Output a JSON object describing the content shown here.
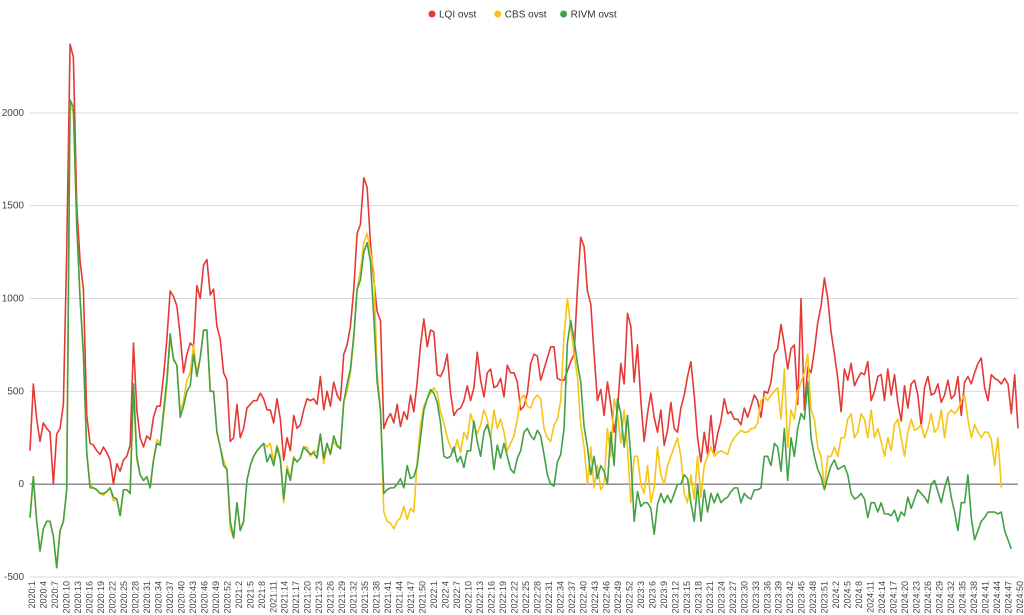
{
  "chart_data": {
    "type": "line",
    "title": "",
    "xlabel": "",
    "ylabel": "",
    "ylim": [
      -500,
      2500
    ],
    "yticks": [
      -500,
      0,
      500,
      1000,
      1500,
      2000
    ],
    "grid": true,
    "legend_position": "top-center",
    "xtick_labels": [
      "2020:1",
      "2020:4",
      "2020:7",
      "2020:10",
      "2020:13",
      "2020:16",
      "2020:19",
      "2020:22",
      "2020:25",
      "2020:28",
      "2020:31",
      "2020:34",
      "2020:37",
      "2020:40",
      "2020:43",
      "2020:46",
      "2020:49",
      "2020:52",
      "2021:2",
      "2021:5",
      "2021:8",
      "2021:11",
      "2021:14",
      "2021:17",
      "2021:20",
      "2021:23",
      "2021:26",
      "2021:29",
      "2021:32",
      "2021:35",
      "2021:38",
      "2021:41",
      "2021:44",
      "2021:47",
      "2021:50",
      "2022:1",
      "2022:4",
      "2022:7",
      "2022:10",
      "2022:13",
      "2022:16",
      "2022:19",
      "2022:22",
      "2022:25",
      "2022:28",
      "2022:31",
      "2022:34",
      "2022:37",
      "2022:40",
      "2022:43",
      "2022:46",
      "2022:49",
      "2022:52",
      "2023:3",
      "2023:6",
      "2023:9",
      "2023:12",
      "2023:15",
      "2023:18",
      "2023:21",
      "2023:24",
      "2023:27",
      "2023:30",
      "2023:33",
      "2023:36",
      "2023:39",
      "2023:42",
      "2023:45",
      "2023:48",
      "2023:51",
      "2024:2",
      "2024:5",
      "2024:8",
      "2024:11",
      "2024:14",
      "2024:17",
      "2024:20",
      "2024:23",
      "2024:26",
      "2024:29",
      "2024:32",
      "2024:35",
      "2024:38",
      "2024:41",
      "2024:44",
      "2024:47",
      "2024:50"
    ],
    "series": [
      {
        "name": "LQI ovst",
        "color": "#e53935",
        "values": [
          180,
          540,
          350,
          230,
          330,
          300,
          280,
          0,
          270,
          300,
          430,
          1250,
          2370,
          2300,
          1500,
          1200,
          1050,
          370,
          220,
          210,
          180,
          160,
          200,
          170,
          130,
          0,
          110,
          70,
          130,
          150,
          210,
          760,
          400,
          250,
          200,
          260,
          240,
          360,
          420,
          420,
          580,
          780,
          1040,
          1010,
          960,
          800,
          600,
          700,
          760,
          740,
          1070,
          1000,
          1180,
          1210,
          1020,
          1050,
          850,
          780,
          600,
          560,
          230,
          250,
          430,
          250,
          300,
          410,
          430,
          450,
          450,
          490,
          460,
          400,
          400,
          330,
          460,
          350,
          130,
          250,
          180,
          370,
          300,
          320,
          400,
          460,
          450,
          460,
          430,
          580,
          400,
          500,
          420,
          550,
          480,
          450,
          700,
          750,
          850,
          1050,
          1350,
          1400,
          1650,
          1600,
          1300,
          1100,
          930,
          880,
          300,
          350,
          380,
          330,
          430,
          310,
          390,
          350,
          480,
          390,
          550,
          750,
          890,
          740,
          830,
          820,
          590,
          580,
          620,
          700,
          490,
          370,
          400,
          410,
          450,
          530,
          450,
          520,
          710,
          560,
          470,
          600,
          620,
          520,
          530,
          570,
          470,
          640,
          600,
          600,
          550,
          400,
          420,
          490,
          650,
          700,
          690,
          560,
          620,
          680,
          740,
          740,
          570,
          560,
          560,
          610,
          660,
          700,
          1050,
          1330,
          1280,
          1040,
          970,
          700,
          450,
          510,
          370,
          550,
          430,
          280,
          400,
          650,
          540,
          920,
          850,
          550,
          750,
          450,
          230,
          380,
          490,
          360,
          280,
          400,
          210,
          290,
          440,
          300,
          280,
          410,
          480,
          580,
          660,
          480,
          250,
          120,
          280,
          160,
          370,
          170,
          270,
          340,
          460,
          380,
          390,
          350,
          350,
          320,
          410,
          360,
          420,
          480,
          450,
          360,
          500,
          490,
          550,
          700,
          730,
          860,
          750,
          620,
          730,
          750,
          430,
          1000,
          400,
          630,
          600,
          720,
          870,
          960,
          1110,
          1000,
          820,
          700,
          570,
          390,
          620,
          560,
          650,
          530,
          570,
          600,
          590,
          660,
          450,
          500,
          580,
          590,
          450,
          620,
          480,
          590,
          440,
          340,
          530,
          410,
          540,
          560,
          480,
          310,
          520,
          580,
          480,
          490,
          540,
          440,
          480,
          560,
          460,
          480,
          580,
          370,
          550,
          580,
          540,
          600,
          650,
          680,
          520,
          450,
          590,
          570,
          560,
          540,
          570,
          540,
          380,
          590,
          300
        ]
      },
      {
        "name": "CBS ovst",
        "color": "#f5c518",
        "values": [
          -180,
          40,
          -200,
          -360,
          -240,
          -200,
          -200,
          -280,
          -450,
          -250,
          -200,
          -30,
          2050,
          2000,
          1400,
          1000,
          700,
          170,
          0,
          -20,
          -30,
          -50,
          -60,
          -40,
          -20,
          -90,
          -80,
          -170,
          -30,
          -30,
          -50,
          520,
          130,
          50,
          20,
          40,
          -20,
          130,
          240,
          220,
          360,
          530,
          780,
          680,
          640,
          390,
          450,
          560,
          600,
          750,
          600,
          680,
          830,
          830,
          500,
          500,
          280,
          200,
          130,
          80,
          -240,
          -290,
          -100,
          -250,
          -200,
          20,
          100,
          150,
          180,
          200,
          220,
          200,
          220,
          120,
          210,
          150,
          -100,
          100,
          30,
          150,
          120,
          140,
          200,
          200,
          150,
          180,
          170,
          270,
          110,
          210,
          180,
          230,
          200,
          200,
          450,
          500,
          600,
          780,
          1050,
          1150,
          1300,
          1350,
          1250,
          1150,
          600,
          400,
          -150,
          -200,
          -210,
          -240,
          -200,
          -180,
          -120,
          -190,
          -130,
          -150,
          120,
          320,
          420,
          460,
          490,
          520,
          490,
          390,
          330,
          250,
          200,
          170,
          240,
          170,
          280,
          240,
          380,
          320,
          270,
          320,
          400,
          350,
          250,
          400,
          300,
          350,
          280,
          180,
          220,
          260,
          350,
          460,
          480,
          420,
          410,
          460,
          480,
          460,
          300,
          250,
          230,
          320,
          350,
          450,
          800,
          1000,
          850,
          700,
          580,
          320,
          200,
          0,
          200,
          -20,
          100,
          -30,
          0,
          300,
          150,
          460,
          380,
          220,
          400,
          200,
          -100,
          150,
          150,
          0,
          -50,
          100,
          -100,
          -20,
          200,
          50,
          0,
          100,
          150,
          200,
          250,
          150,
          -50,
          -100,
          50,
          -80,
          150,
          -70,
          100,
          150,
          200,
          150,
          170,
          180,
          170,
          160,
          220,
          250,
          270,
          290,
          280,
          280,
          300,
          300,
          330,
          450,
          470,
          450,
          480,
          500,
          520,
          350,
          620,
          200,
          400,
          350,
          500,
          550,
          600,
          700,
          400,
          350,
          200,
          150,
          -20,
          150,
          150,
          200,
          150,
          250,
          250,
          350,
          380,
          250,
          280,
          380,
          350,
          250,
          400,
          250,
          300,
          230,
          150,
          250,
          180,
          320,
          350,
          250,
          150,
          280,
          350,
          290,
          300,
          320,
          250,
          300,
          380,
          280,
          300,
          400,
          250,
          380,
          400,
          380,
          400,
          450,
          480,
          350,
          250,
          320,
          280,
          250,
          280,
          280,
          240,
          100,
          250,
          -20
        ]
      },
      {
        "name": "RIVM ovst",
        "color": "#43a047",
        "values": [
          -180,
          40,
          -200,
          -360,
          -240,
          -200,
          -200,
          -280,
          -450,
          -250,
          -200,
          -30,
          2070,
          2030,
          1400,
          1000,
          700,
          170,
          -20,
          -20,
          -30,
          -50,
          -50,
          -40,
          -20,
          -70,
          -80,
          -170,
          -30,
          -30,
          -50,
          540,
          150,
          50,
          20,
          40,
          -20,
          130,
          220,
          210,
          390,
          560,
          810,
          670,
          640,
          360,
          420,
          500,
          530,
          700,
          580,
          680,
          830,
          830,
          500,
          500,
          280,
          200,
          100,
          80,
          -200,
          -290,
          -100,
          -250,
          -200,
          20,
          100,
          150,
          180,
          200,
          220,
          120,
          160,
          100,
          200,
          130,
          -80,
          80,
          20,
          140,
          120,
          140,
          200,
          180,
          160,
          170,
          140,
          270,
          140,
          220,
          160,
          260,
          210,
          190,
          440,
          540,
          620,
          800,
          1050,
          1100,
          1250,
          1300,
          1200,
          900,
          550,
          400,
          -50,
          -30,
          -20,
          -20,
          0,
          30,
          -20,
          100,
          30,
          40,
          100,
          250,
          400,
          460,
          510,
          490,
          440,
          330,
          150,
          140,
          150,
          200,
          120,
          150,
          90,
          180,
          180,
          340,
          230,
          150,
          280,
          320,
          250,
          80,
          210,
          140,
          220,
          150,
          80,
          60,
          140,
          180,
          280,
          300,
          260,
          240,
          290,
          260,
          160,
          50,
          0,
          -10,
          120,
          160,
          300,
          760,
          880,
          780,
          650,
          550,
          310,
          200,
          50,
          150,
          30,
          100,
          70,
          0,
          280,
          100,
          460,
          380,
          200,
          370,
          150,
          -200,
          -40,
          -120,
          -100,
          -100,
          -130,
          -270,
          -110,
          -50,
          -100,
          -60,
          -100,
          -50,
          0,
          0,
          50,
          30,
          -100,
          -200,
          0,
          -200,
          -30,
          -150,
          -50,
          -100,
          -50,
          -100,
          -80,
          -70,
          -40,
          -20,
          -20,
          -100,
          -50,
          -70,
          -80,
          -30,
          -30,
          -20,
          150,
          150,
          100,
          220,
          200,
          70,
          300,
          20,
          250,
          150,
          300,
          380,
          350,
          550,
          250,
          150,
          80,
          40,
          -30,
          40,
          100,
          130,
          80,
          90,
          100,
          50,
          -50,
          -80,
          -70,
          -50,
          -80,
          -180,
          -100,
          -100,
          -150,
          -100,
          -160,
          -160,
          -170,
          -140,
          -200,
          -150,
          -170,
          -70,
          -130,
          -80,
          -30,
          -50,
          -70,
          -100,
          0,
          20,
          -40,
          -100,
          -20,
          40,
          -70,
          -150,
          -250,
          -100,
          -100,
          50,
          -180,
          -300,
          -250,
          -200,
          -180,
          -150,
          -150,
          -150,
          -160,
          -150,
          -250,
          -300,
          -350
        ]
      }
    ]
  }
}
